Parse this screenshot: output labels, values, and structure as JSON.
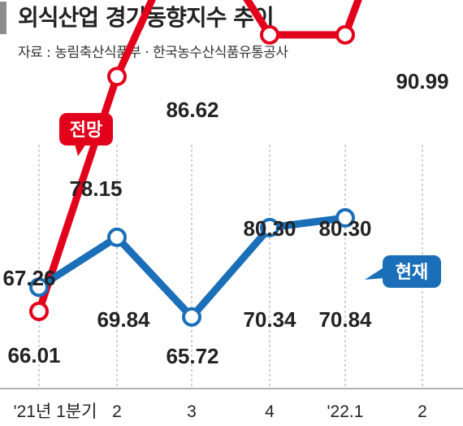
{
  "header": {
    "title": "외식산업 경기동향지수 추이",
    "source": "자료 : 농림축산식품부 · 한국농수산식품유통공사"
  },
  "chart_data": {
    "type": "line",
    "title": "외식산업 경기동향지수 추이",
    "categories": [
      "'21년 1분기",
      "2",
      "3",
      "4",
      "'22.1",
      "2"
    ],
    "series": [
      {
        "name": "전망",
        "color": "#e3001b",
        "values": [
          66.01,
          78.15,
          86.62,
          80.3,
          80.3,
          90.99
        ]
      },
      {
        "name": "현재",
        "color": "#1a6fb8",
        "values": [
          67.26,
          69.84,
          65.72,
          70.34,
          70.84,
          null
        ]
      }
    ],
    "value_labels": {
      "forecast": [
        "66.01",
        "78.15",
        "86.62",
        "80.30",
        "80.30",
        "90.99"
      ],
      "current": [
        "67.26",
        "69.84",
        "65.72",
        "70.34",
        "70.84"
      ]
    },
    "legend": "inline tags on lines",
    "grid": false
  }
}
